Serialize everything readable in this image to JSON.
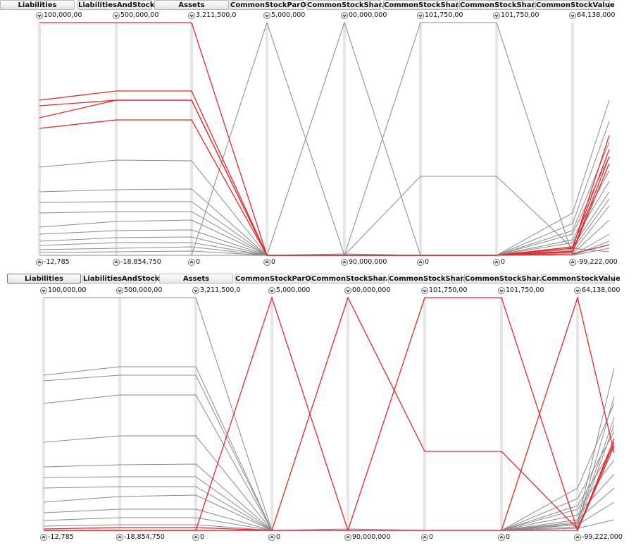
{
  "panels": [
    {
      "headers": [
        "Liabilities",
        "LiabilitiesAndStock...",
        "Assets",
        "CommonStockParO...",
        "CommonStockShar...",
        "CommonStockShar...",
        "CommonStockShar...",
        "CommonStockValue"
      ],
      "top_labels": [
        "100,000,00",
        "500,000,00",
        "3,211,500,0",
        "5,000,000",
        "00,000,000",
        "101,750,00",
        "101,750,00",
        "64,138,000"
      ],
      "bottom_labels": [
        "-12,785",
        "-18,854,750",
        "0",
        "0",
        "90,000,000",
        "0",
        "0",
        "-99,222,000"
      ]
    },
    {
      "headers": [
        "Liabilities",
        "LiabilitiesAndStock...",
        "Assets",
        "CommonStockParO...",
        "CommonStockShar...",
        "CommonStockShar...",
        "CommonStockShar...",
        "CommonStockValue"
      ],
      "top_labels": [
        "100,000,00",
        "500,000,00",
        "3,211,500,0",
        "5,000,000",
        "00,000,000",
        "101,750,00",
        "101,750,00",
        "64,138,000"
      ],
      "bottom_labels": [
        "-12,785",
        "-18,854,750",
        "0",
        "0",
        "90,000,000",
        "0",
        "0",
        "-99,222,000"
      ]
    }
  ]
}
